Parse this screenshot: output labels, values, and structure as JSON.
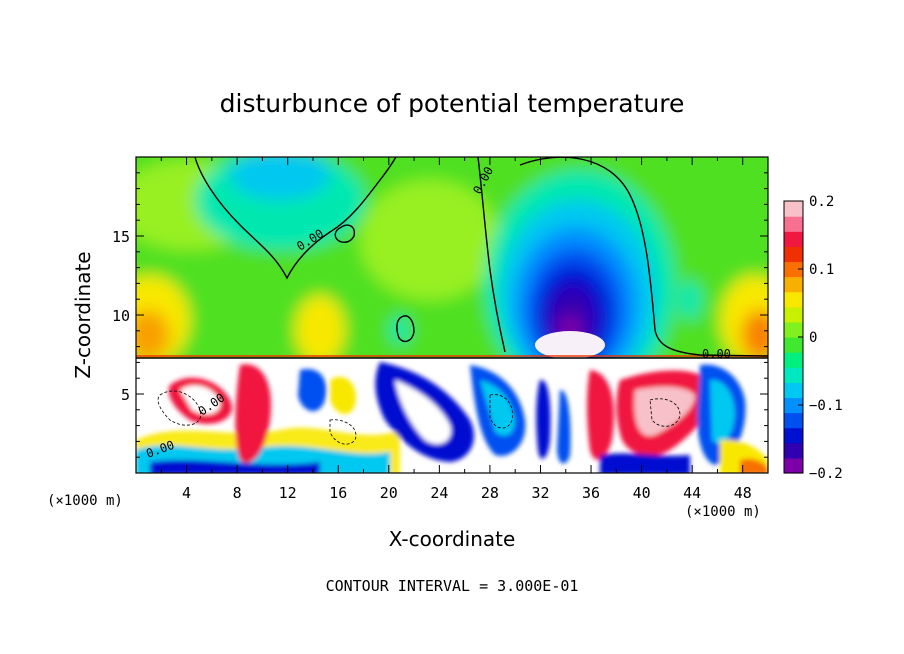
{
  "chart_data": {
    "type": "heatmap",
    "title": "disturbunce of potential temperature",
    "xlabel": "X-coordinate",
    "ylabel": "Z-coordinate",
    "x_units_left": "(×1000 m)",
    "x_units_right": "(×1000 m)",
    "xlim": [
      0,
      50
    ],
    "ylim": [
      0,
      20
    ],
    "x_ticks": [
      "4",
      "8",
      "12",
      "16",
      "20",
      "24",
      "28",
      "32",
      "36",
      "40",
      "44",
      "48"
    ],
    "y_ticks": [
      "5",
      "10",
      "15"
    ],
    "colorbar": {
      "min": -0.2,
      "max": 0.2,
      "tick_labels": [
        "0.2",
        "0.1",
        "0",
        "−0.1",
        "−0.2"
      ],
      "tick_values": [
        0.2,
        0.1,
        0,
        -0.1,
        -0.2
      ],
      "colors": [
        "#7b00a8",
        "#3000b0",
        "#0010d0",
        "#0050f0",
        "#0090ff",
        "#00c8f0",
        "#00e8c0",
        "#00f080",
        "#40e830",
        "#80f020",
        "#c8f000",
        "#f8e800",
        "#f8b000",
        "#f87000",
        "#f03000",
        "#f01840",
        "#f87090",
        "#f8c0c8"
      ]
    },
    "contour_label": "0.00",
    "footer": "CONTOUR INTERVAL = 3.000E-01"
  }
}
